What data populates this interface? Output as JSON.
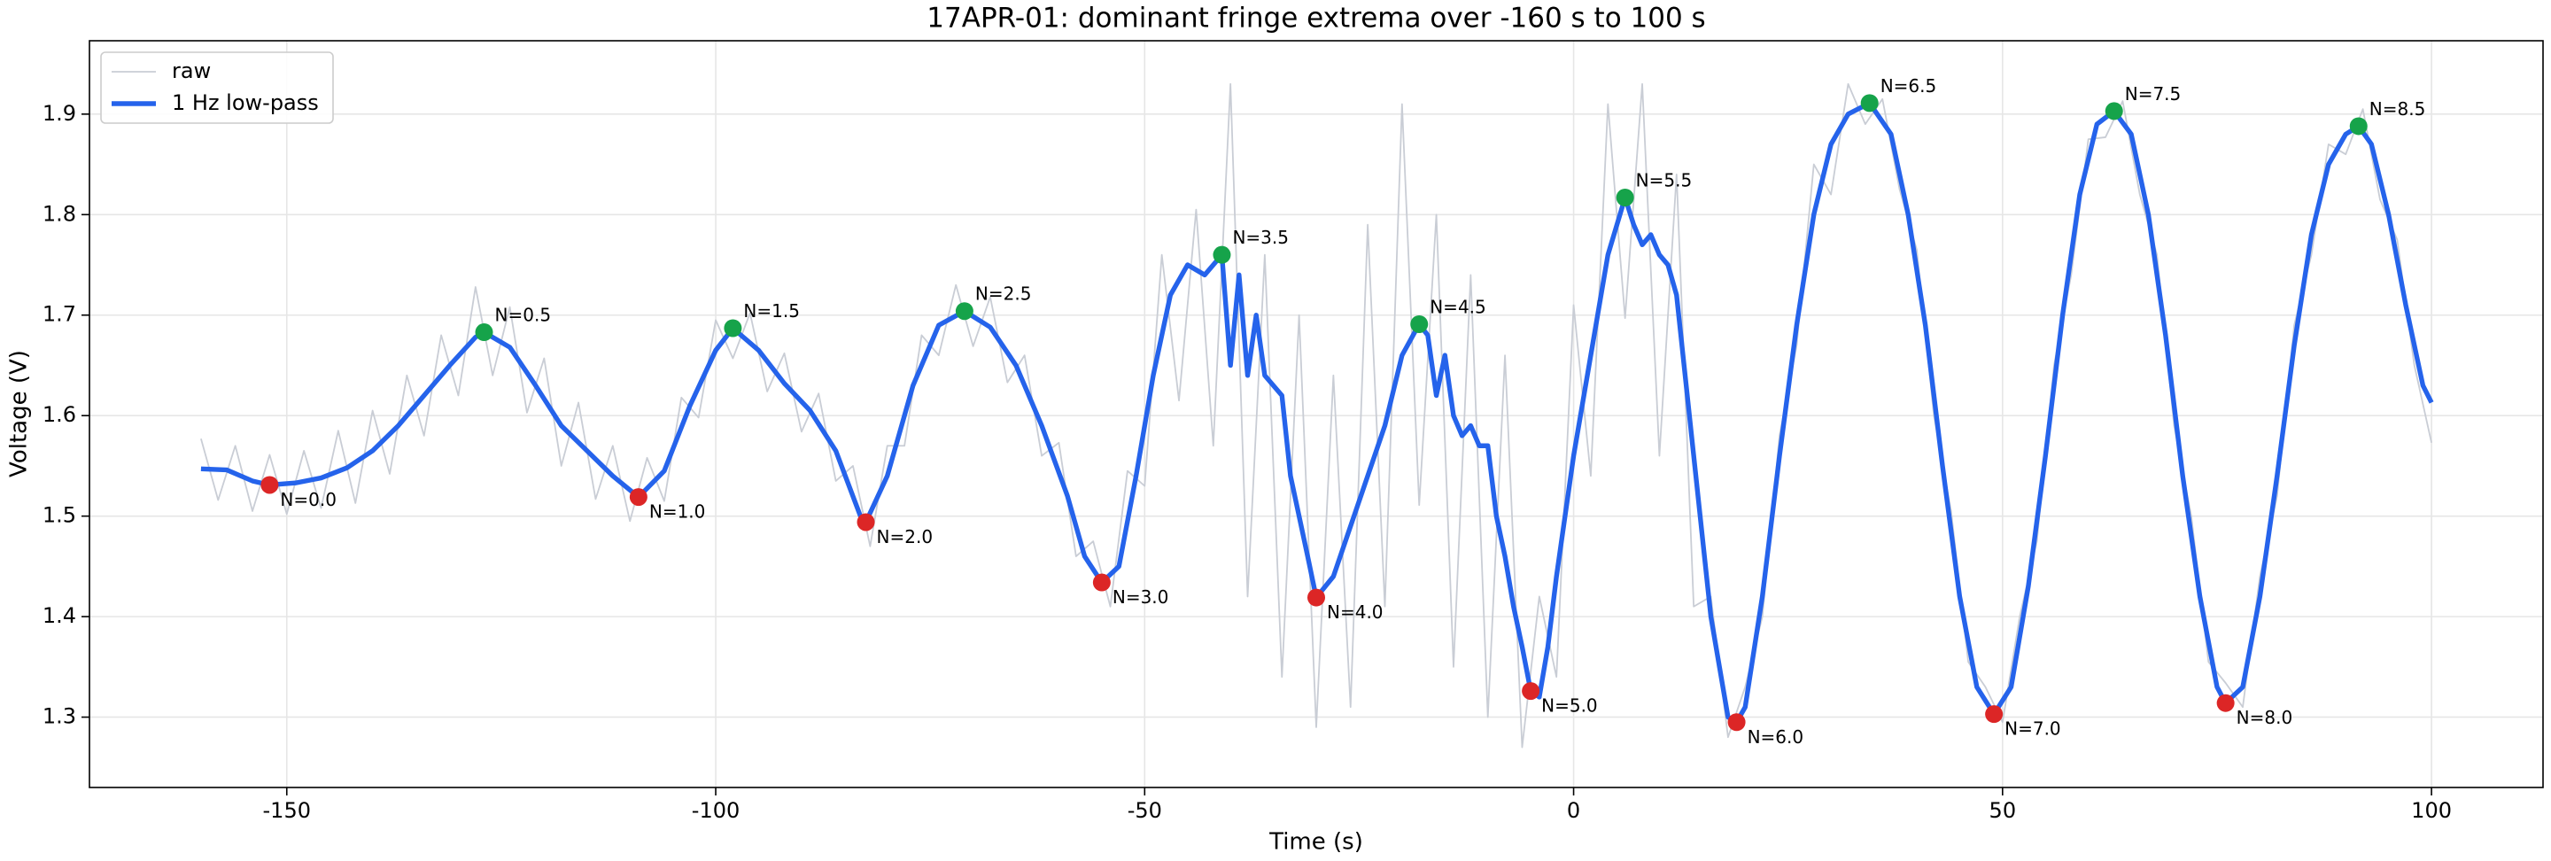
{
  "chart_data": {
    "type": "line",
    "title": "17APR-01: dominant fringe extrema over -160 s to 100 s",
    "x_label": "Time (s)",
    "y_label": "Voltage (V)",
    "xlim": [
      -173,
      113
    ],
    "ylim": [
      1.23,
      1.973
    ],
    "xticks": [
      -150,
      -100,
      -50,
      0,
      50,
      100
    ],
    "yticks": [
      1.3,
      1.4,
      1.5,
      1.6,
      1.7,
      1.8,
      1.9
    ],
    "grid": true,
    "legend": "upper left",
    "series": [
      {
        "name": "raw",
        "color": "#c9cdd5",
        "width": 1,
        "x": [
          -160,
          -158,
          -156,
          -154,
          -152,
          -150,
          -148,
          -146,
          -144,
          -142,
          -140,
          -138,
          -136,
          -134,
          -132,
          -130,
          -128,
          -126,
          -124,
          -122,
          -120,
          -118,
          -116,
          -114,
          -112,
          -110,
          -108,
          -106,
          -104,
          -102,
          -100,
          -98,
          -96,
          -94,
          -92,
          -90,
          -88,
          -86,
          -84,
          -82,
          -80,
          -78,
          -76,
          -74,
          -72,
          -70,
          -68,
          -66,
          -64,
          -62,
          -60,
          -58,
          -56,
          -54,
          -52,
          -50,
          -48,
          -46,
          -44,
          -42,
          -40,
          -38,
          -36,
          -34,
          -32,
          -30,
          -28,
          -26,
          -24,
          -22,
          -20,
          -18,
          -16,
          -14,
          -12,
          -10,
          -8,
          -6,
          -4,
          -2,
          0,
          2,
          4,
          6,
          8,
          10,
          12,
          14,
          16,
          18,
          20,
          22,
          24,
          26,
          28,
          30,
          32,
          34,
          36,
          38,
          40,
          42,
          44,
          46,
          48,
          50,
          52,
          54,
          56,
          58,
          60,
          62,
          64,
          66,
          68,
          70,
          72,
          74,
          76,
          78,
          80,
          82,
          84,
          86,
          88,
          90,
          92,
          94,
          96,
          98,
          100
        ],
        "values": [
          1.577,
          1.516,
          1.57,
          1.505,
          1.561,
          1.502,
          1.565,
          1.508,
          1.585,
          1.513,
          1.605,
          1.542,
          1.64,
          1.58,
          1.68,
          1.62,
          1.728,
          1.64,
          1.708,
          1.603,
          1.657,
          1.55,
          1.613,
          1.517,
          1.57,
          1.495,
          1.558,
          1.515,
          1.618,
          1.598,
          1.695,
          1.657,
          1.702,
          1.624,
          1.662,
          1.584,
          1.622,
          1.535,
          1.55,
          1.47,
          1.57,
          1.57,
          1.68,
          1.66,
          1.73,
          1.669,
          1.718,
          1.633,
          1.66,
          1.56,
          1.573,
          1.46,
          1.475,
          1.41,
          1.545,
          1.53,
          1.76,
          1.615,
          1.805,
          1.57,
          1.93,
          1.42,
          1.76,
          1.34,
          1.7,
          1.29,
          1.64,
          1.31,
          1.79,
          1.41,
          1.91,
          1.511,
          1.8,
          1.35,
          1.74,
          1.3,
          1.66,
          1.27,
          1.42,
          1.34,
          1.71,
          1.54,
          1.91,
          1.697,
          1.93,
          1.56,
          1.84,
          1.41,
          1.42,
          1.28,
          1.33,
          1.4,
          1.58,
          1.67,
          1.85,
          1.82,
          1.93,
          1.89,
          1.915,
          1.825,
          1.765,
          1.6,
          1.505,
          1.355,
          1.33,
          1.295,
          1.4,
          1.475,
          1.65,
          1.74,
          1.875,
          1.877,
          1.913,
          1.82,
          1.76,
          1.59,
          1.5,
          1.355,
          1.334,
          1.31,
          1.44,
          1.52,
          1.69,
          1.76,
          1.87,
          1.86,
          1.905,
          1.815,
          1.775,
          1.65,
          1.573
        ]
      },
      {
        "name": "1 Hz low-pass",
        "color": "#2563eb",
        "width": 3,
        "x": [
          -160,
          -157,
          -154,
          -152,
          -149,
          -146,
          -143,
          -140,
          -137,
          -134,
          -131,
          -128,
          -127,
          -124,
          -121,
          -118,
          -115,
          -112,
          -109,
          -106,
          -103,
          -100,
          -98,
          -95,
          -92,
          -89,
          -86,
          -83,
          -82.5,
          -80,
          -77,
          -74,
          -71,
          -68,
          -65,
          -62,
          -59,
          -57,
          -55,
          -53,
          -51,
          -49,
          -47,
          -45,
          -43,
          -41,
          -40,
          -39,
          -38,
          -37,
          -36,
          -34,
          -33,
          -32,
          -31,
          -30,
          -28,
          -26,
          -24,
          -22,
          -20,
          -18,
          -17,
          -16,
          -15,
          -14,
          -13,
          -12,
          -11,
          -10,
          -9,
          -8,
          -7,
          -6,
          -5,
          -4,
          -3,
          -2,
          0,
          2,
          4,
          6,
          7,
          8,
          9,
          10,
          11,
          12,
          14,
          16,
          18,
          19,
          20,
          22,
          24,
          26,
          28,
          30,
          32,
          34.5,
          37,
          39,
          41,
          43,
          45,
          47,
          49,
          51,
          53,
          55,
          57,
          59,
          61,
          63,
          65,
          67,
          69,
          71,
          73,
          75,
          76,
          78,
          80,
          82,
          84,
          86,
          88,
          90,
          91.5,
          93,
          95,
          97,
          99,
          100
        ],
        "values": [
          1.547,
          1.546,
          1.535,
          1.531,
          1.533,
          1.538,
          1.548,
          1.565,
          1.59,
          1.62,
          1.65,
          1.678,
          1.683,
          1.668,
          1.63,
          1.59,
          1.565,
          1.54,
          1.519,
          1.545,
          1.61,
          1.665,
          1.687,
          1.665,
          1.632,
          1.605,
          1.565,
          1.497,
          1.494,
          1.54,
          1.63,
          1.69,
          1.704,
          1.688,
          1.65,
          1.59,
          1.52,
          1.46,
          1.434,
          1.45,
          1.54,
          1.64,
          1.72,
          1.75,
          1.74,
          1.76,
          1.65,
          1.74,
          1.64,
          1.7,
          1.64,
          1.62,
          1.54,
          1.5,
          1.46,
          1.419,
          1.44,
          1.49,
          1.54,
          1.59,
          1.66,
          1.691,
          1.68,
          1.62,
          1.66,
          1.6,
          1.58,
          1.59,
          1.57,
          1.57,
          1.5,
          1.46,
          1.41,
          1.37,
          1.326,
          1.32,
          1.37,
          1.44,
          1.56,
          1.66,
          1.76,
          1.817,
          1.79,
          1.77,
          1.78,
          1.76,
          1.75,
          1.72,
          1.56,
          1.4,
          1.3,
          1.295,
          1.31,
          1.42,
          1.56,
          1.69,
          1.8,
          1.87,
          1.9,
          1.911,
          1.88,
          1.8,
          1.69,
          1.55,
          1.42,
          1.33,
          1.303,
          1.33,
          1.43,
          1.56,
          1.7,
          1.82,
          1.89,
          1.903,
          1.88,
          1.8,
          1.68,
          1.54,
          1.42,
          1.33,
          1.314,
          1.33,
          1.42,
          1.54,
          1.67,
          1.78,
          1.85,
          1.88,
          1.888,
          1.87,
          1.8,
          1.71,
          1.63,
          1.613
        ]
      }
    ],
    "minima": {
      "color": "#dc2626",
      "points": [
        {
          "x": -152,
          "y": 1.531,
          "label": "N=0.0"
        },
        {
          "x": -109,
          "y": 1.519,
          "label": "N=1.0"
        },
        {
          "x": -82.5,
          "y": 1.494,
          "label": "N=2.0"
        },
        {
          "x": -55,
          "y": 1.434,
          "label": "N=3.0"
        },
        {
          "x": -30,
          "y": 1.419,
          "label": "N=4.0"
        },
        {
          "x": -5,
          "y": 1.326,
          "label": "N=5.0"
        },
        {
          "x": 19,
          "y": 1.295,
          "label": "N=6.0"
        },
        {
          "x": 49,
          "y": 1.303,
          "label": "N=7.0"
        },
        {
          "x": 76,
          "y": 1.314,
          "label": "N=8.0"
        }
      ]
    },
    "maxima": {
      "color": "#16a34a",
      "points": [
        {
          "x": -127,
          "y": 1.683,
          "label": "N=0.5"
        },
        {
          "x": -98,
          "y": 1.687,
          "label": "N=1.5"
        },
        {
          "x": -71,
          "y": 1.704,
          "label": "N=2.5"
        },
        {
          "x": -41,
          "y": 1.76,
          "label": "N=3.5"
        },
        {
          "x": -18,
          "y": 1.691,
          "label": "N=4.5"
        },
        {
          "x": 6,
          "y": 1.817,
          "label": "N=5.5"
        },
        {
          "x": 34.5,
          "y": 1.911,
          "label": "N=6.5"
        },
        {
          "x": 63,
          "y": 1.903,
          "label": "N=7.5"
        },
        {
          "x": 91.5,
          "y": 1.888,
          "label": "N=8.5"
        }
      ]
    }
  }
}
